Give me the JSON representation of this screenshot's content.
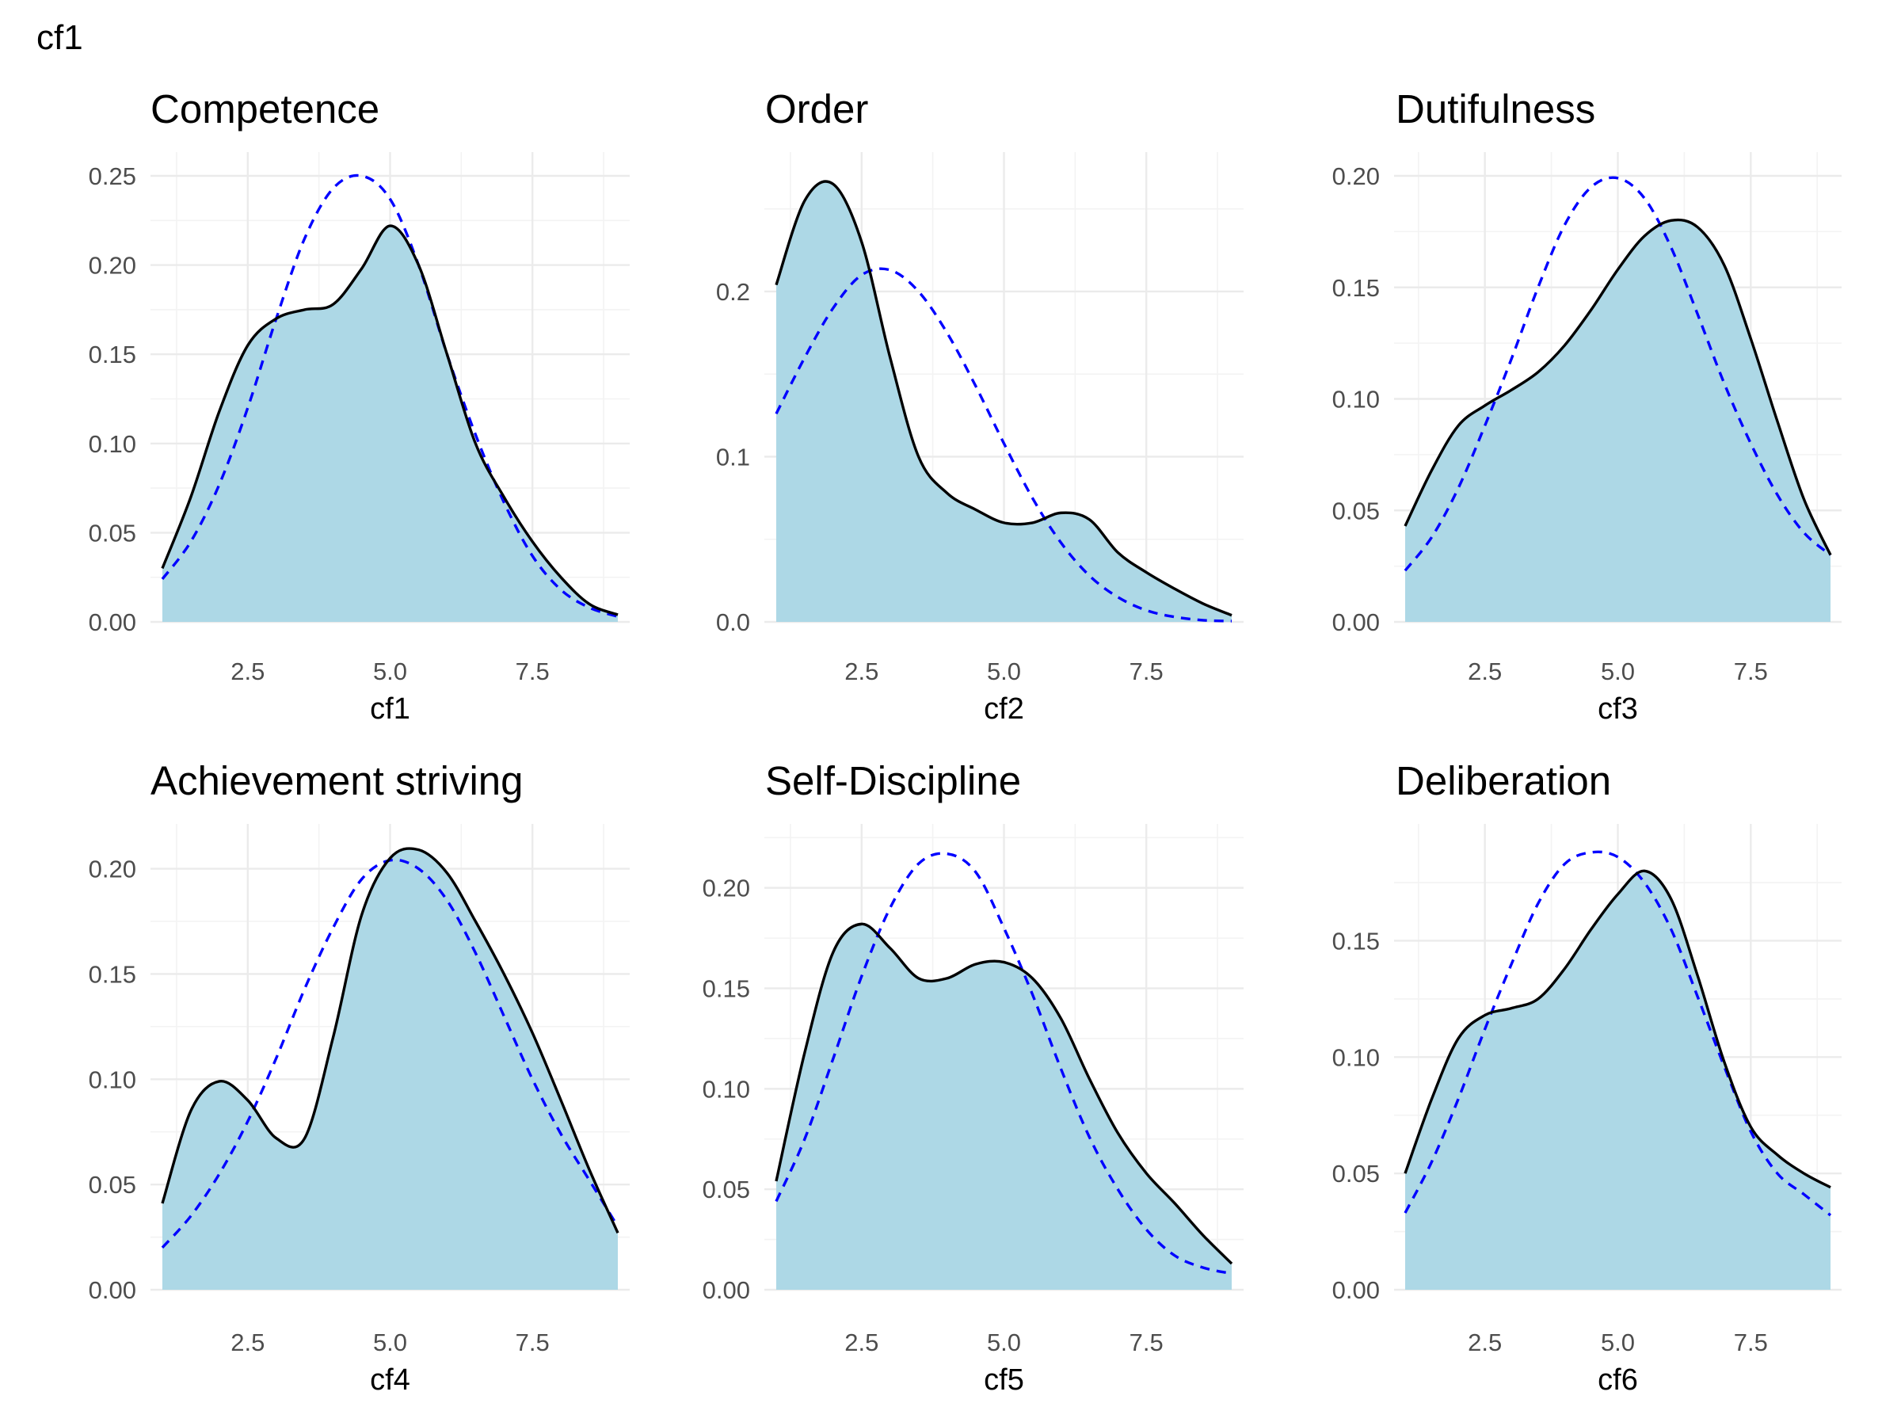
{
  "page_title": "cf1",
  "chart_data": [
    {
      "type": "area",
      "title": "Competence",
      "xlabel": "cf1",
      "ylabel": "",
      "xlim": [
        1,
        9
      ],
      "ylim": [
        0,
        0.25
      ],
      "xticks": [
        2.5,
        5.0,
        7.5
      ],
      "xtick_labels": [
        "2.5",
        "5.0",
        "7.5"
      ],
      "yticks": [
        0,
        0.05,
        0.1,
        0.15,
        0.2,
        0.25
      ],
      "ytick_labels": [
        "0.00",
        "0.05",
        "0.10",
        "0.15",
        "0.20",
        "0.25"
      ],
      "grid": true,
      "series": [
        {
          "style": "solid-black-line-with-lightblue-fill",
          "x": [
            1,
            1.5,
            2,
            2.5,
            3,
            3.5,
            4,
            4.5,
            5,
            5.5,
            6,
            6.5,
            7,
            7.5,
            8,
            8.5,
            9
          ],
          "y": [
            0.03,
            0.07,
            0.118,
            0.155,
            0.17,
            0.175,
            0.178,
            0.198,
            0.222,
            0.2,
            0.15,
            0.1,
            0.07,
            0.045,
            0.025,
            0.01,
            0.004
          ]
        },
        {
          "style": "dashed-blue-line",
          "x": [
            1,
            1.5,
            2,
            2.5,
            3,
            3.5,
            4,
            4.5,
            5,
            5.5,
            6,
            6.5,
            7,
            7.5,
            8,
            8.5,
            9
          ],
          "y": [
            0.024,
            0.045,
            0.077,
            0.12,
            0.17,
            0.215,
            0.243,
            0.25,
            0.237,
            0.2,
            0.15,
            0.105,
            0.067,
            0.037,
            0.018,
            0.008,
            0.003
          ]
        }
      ]
    },
    {
      "type": "area",
      "title": "Order",
      "xlabel": "cf2",
      "ylabel": "",
      "xlim": [
        1,
        9
      ],
      "ylim": [
        0,
        0.27
      ],
      "xticks": [
        2.5,
        5.0,
        7.5
      ],
      "xtick_labels": [
        "2.5",
        "5.0",
        "7.5"
      ],
      "yticks": [
        0,
        0.1,
        0.2
      ],
      "ytick_labels": [
        "0.0",
        "0.1",
        "0.2"
      ],
      "grid": true,
      "series": [
        {
          "style": "solid-black-line-with-lightblue-fill",
          "x": [
            1,
            1.5,
            2,
            2.5,
            3,
            3.5,
            4,
            4.5,
            5,
            5.5,
            6,
            6.5,
            7,
            7.5,
            8,
            8.5,
            9
          ],
          "y": [
            0.204,
            0.255,
            0.265,
            0.23,
            0.16,
            0.1,
            0.078,
            0.068,
            0.06,
            0.06,
            0.066,
            0.062,
            0.042,
            0.03,
            0.02,
            0.011,
            0.004
          ]
        },
        {
          "style": "dashed-blue-line",
          "x": [
            1,
            1.5,
            2,
            2.5,
            3,
            3.5,
            4,
            4.5,
            5,
            5.5,
            6,
            6.5,
            7,
            7.5,
            8,
            8.5,
            9
          ],
          "y": [
            0.126,
            0.16,
            0.19,
            0.21,
            0.213,
            0.2,
            0.175,
            0.143,
            0.108,
            0.075,
            0.048,
            0.028,
            0.015,
            0.007,
            0.003,
            0.001,
            0.0005
          ]
        }
      ]
    },
    {
      "type": "area",
      "title": "Dutifulness",
      "xlabel": "cf3",
      "ylabel": "",
      "xlim": [
        1,
        9
      ],
      "ylim": [
        0,
        0.2
      ],
      "xticks": [
        2.5,
        5.0,
        7.5
      ],
      "xtick_labels": [
        "2.5",
        "5.0",
        "7.5"
      ],
      "yticks": [
        0,
        0.05,
        0.1,
        0.15,
        0.2
      ],
      "ytick_labels": [
        "0.00",
        "0.05",
        "0.10",
        "0.15",
        "0.20"
      ],
      "grid": true,
      "series": [
        {
          "style": "solid-black-line-with-lightblue-fill",
          "x": [
            1,
            1.5,
            2,
            2.5,
            3,
            3.5,
            4,
            4.5,
            5,
            5.5,
            6,
            6.5,
            7,
            7.5,
            8,
            8.5,
            9
          ],
          "y": [
            0.043,
            0.068,
            0.088,
            0.097,
            0.104,
            0.112,
            0.124,
            0.14,
            0.158,
            0.173,
            0.18,
            0.177,
            0.16,
            0.127,
            0.09,
            0.055,
            0.03
          ]
        },
        {
          "style": "dashed-blue-line",
          "x": [
            1,
            1.5,
            2,
            2.5,
            3,
            3.5,
            4,
            4.5,
            5,
            5.5,
            6,
            6.5,
            7,
            7.5,
            8,
            8.5,
            9
          ],
          "y": [
            0.023,
            0.038,
            0.06,
            0.088,
            0.118,
            0.15,
            0.178,
            0.195,
            0.199,
            0.19,
            0.168,
            0.138,
            0.107,
            0.08,
            0.057,
            0.04,
            0.03
          ]
        }
      ]
    },
    {
      "type": "area",
      "title": "Achievement striving",
      "xlabel": "cf4",
      "ylabel": "",
      "xlim": [
        1,
        9
      ],
      "ylim": [
        0,
        0.21
      ],
      "xticks": [
        2.5,
        5.0,
        7.5
      ],
      "xtick_labels": [
        "2.5",
        "5.0",
        "7.5"
      ],
      "yticks": [
        0,
        0.05,
        0.1,
        0.15,
        0.2
      ],
      "ytick_labels": [
        "0.00",
        "0.05",
        "0.10",
        "0.15",
        "0.20"
      ],
      "grid": true,
      "series": [
        {
          "style": "solid-black-line-with-lightblue-fill",
          "x": [
            1,
            1.5,
            2,
            2.5,
            3,
            3.5,
            4,
            4.5,
            5,
            5.5,
            6,
            6.5,
            7,
            7.5,
            8,
            8.5,
            9
          ],
          "y": [
            0.041,
            0.085,
            0.099,
            0.09,
            0.072,
            0.072,
            0.12,
            0.178,
            0.205,
            0.209,
            0.198,
            0.175,
            0.15,
            0.122,
            0.09,
            0.057,
            0.027
          ]
        },
        {
          "style": "dashed-blue-line",
          "x": [
            1,
            1.5,
            2,
            2.5,
            3,
            3.5,
            4,
            4.5,
            5,
            5.5,
            6,
            6.5,
            7,
            7.5,
            8,
            8.5,
            9
          ],
          "y": [
            0.02,
            0.035,
            0.055,
            0.08,
            0.11,
            0.143,
            0.172,
            0.195,
            0.204,
            0.2,
            0.185,
            0.16,
            0.13,
            0.1,
            0.074,
            0.052,
            0.03
          ]
        }
      ]
    },
    {
      "type": "area",
      "title": "Self-Discipline",
      "xlabel": "cf5",
      "ylabel": "",
      "xlim": [
        1,
        9
      ],
      "ylim": [
        0,
        0.22
      ],
      "xticks": [
        2.5,
        5.0,
        7.5
      ],
      "xtick_labels": [
        "2.5",
        "5.0",
        "7.5"
      ],
      "yticks": [
        0,
        0.05,
        0.1,
        0.15,
        0.2
      ],
      "ytick_labels": [
        "0.00",
        "0.05",
        "0.10",
        "0.15",
        "0.20"
      ],
      "grid": true,
      "series": [
        {
          "style": "solid-black-line-with-lightblue-fill",
          "x": [
            1,
            1.5,
            2,
            2.5,
            3,
            3.5,
            4,
            4.5,
            5,
            5.5,
            6,
            6.5,
            7,
            7.5,
            8,
            8.5,
            9
          ],
          "y": [
            0.054,
            0.118,
            0.168,
            0.182,
            0.17,
            0.155,
            0.155,
            0.162,
            0.163,
            0.155,
            0.135,
            0.105,
            0.078,
            0.058,
            0.043,
            0.027,
            0.013
          ]
        },
        {
          "style": "dashed-blue-line",
          "x": [
            1,
            1.5,
            2,
            2.5,
            3,
            3.5,
            4,
            4.5,
            5,
            5.5,
            6,
            6.5,
            7,
            7.5,
            8,
            8.5,
            9
          ],
          "y": [
            0.044,
            0.075,
            0.115,
            0.156,
            0.19,
            0.212,
            0.217,
            0.208,
            0.18,
            0.147,
            0.11,
            0.076,
            0.05,
            0.03,
            0.017,
            0.011,
            0.008
          ]
        }
      ]
    },
    {
      "type": "area",
      "title": "Deliberation",
      "xlabel": "cf6",
      "ylabel": "",
      "xlim": [
        1,
        9
      ],
      "ylim": [
        0,
        0.19
      ],
      "xticks": [
        2.5,
        5.0,
        7.5
      ],
      "xtick_labels": [
        "2.5",
        "5.0",
        "7.5"
      ],
      "yticks": [
        0,
        0.05,
        0.1,
        0.15
      ],
      "ytick_labels": [
        "0.00",
        "0.05",
        "0.10",
        "0.15"
      ],
      "grid": true,
      "series": [
        {
          "style": "solid-black-line-with-lightblue-fill",
          "x": [
            1,
            1.5,
            2,
            2.5,
            3,
            3.5,
            4,
            4.5,
            5,
            5.5,
            6,
            6.5,
            7,
            7.5,
            8,
            8.5,
            9
          ],
          "y": [
            0.05,
            0.082,
            0.108,
            0.118,
            0.121,
            0.125,
            0.138,
            0.155,
            0.17,
            0.18,
            0.168,
            0.135,
            0.098,
            0.07,
            0.058,
            0.05,
            0.044
          ]
        },
        {
          "style": "dashed-blue-line",
          "x": [
            1,
            1.5,
            2,
            2.5,
            3,
            3.5,
            4,
            4.5,
            5,
            5.5,
            6,
            6.5,
            7,
            7.5,
            8,
            8.5,
            9
          ],
          "y": [
            0.033,
            0.055,
            0.082,
            0.112,
            0.14,
            0.166,
            0.183,
            0.188,
            0.186,
            0.175,
            0.155,
            0.126,
            0.096,
            0.068,
            0.05,
            0.041,
            0.032
          ]
        }
      ]
    }
  ]
}
